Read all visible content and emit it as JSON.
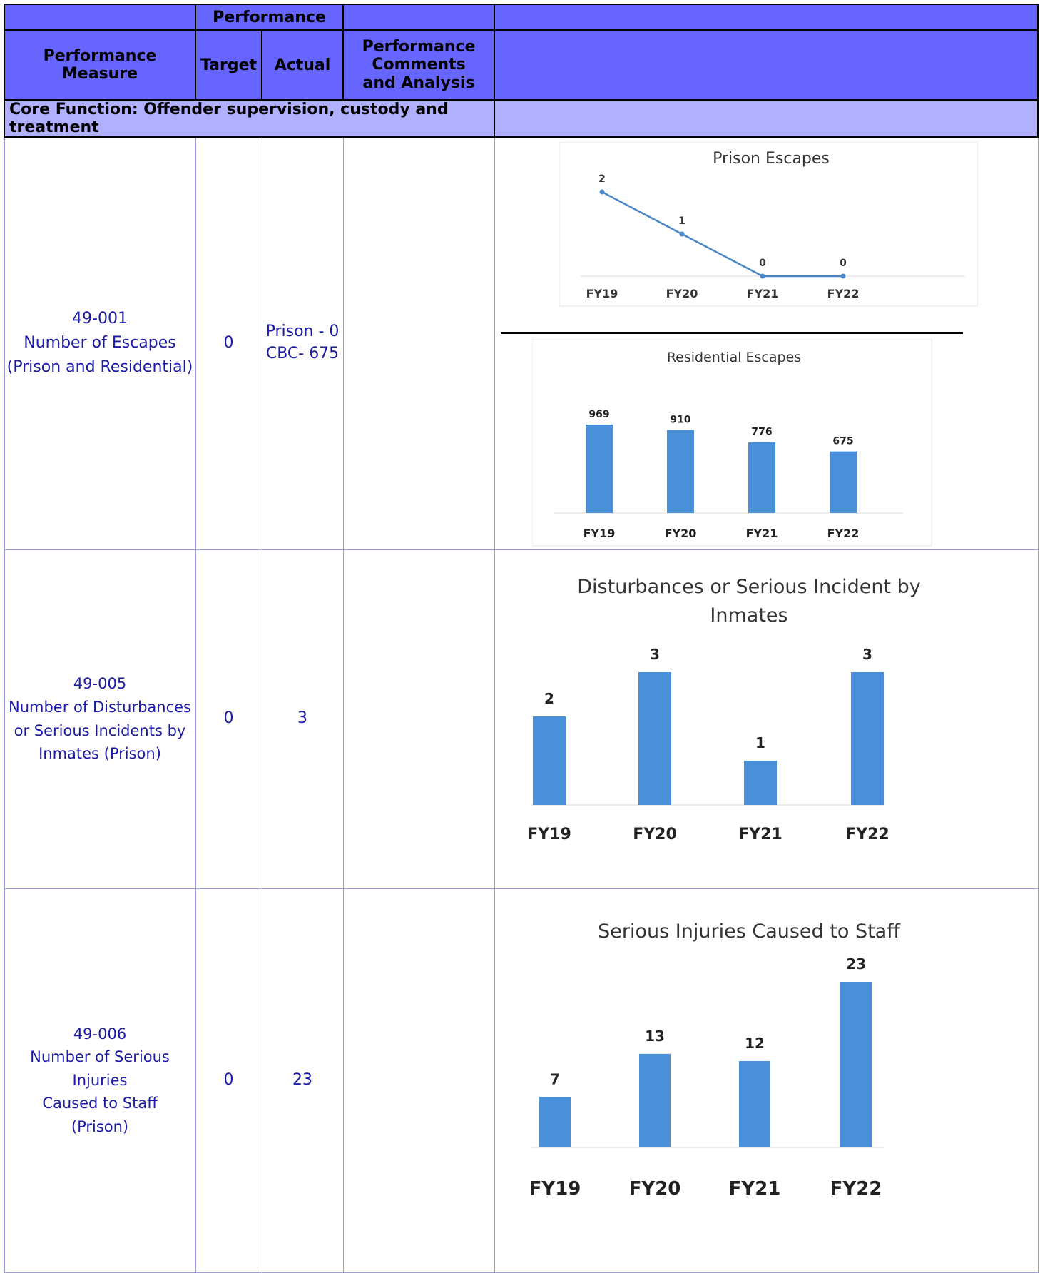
{
  "header": {
    "performance": "Performance",
    "measure": "Performance Measure",
    "target": "Target",
    "actual": "Actual",
    "comments": [
      "Performance",
      "Comments",
      "and Analysis"
    ]
  },
  "core_function": "Core Function: Offender supervision, custody and treatment",
  "rows": [
    {
      "measure": [
        "49-001",
        "Number of Escapes",
        "(Prison and Residential)"
      ],
      "target": "0",
      "actual": [
        "Prison - 0",
        "CBC- 675"
      ],
      "comments": ""
    },
    {
      "measure": [
        "49-005",
        "Number of Disturbances",
        "or Serious Incidents by",
        "Inmates (Prison)"
      ],
      "target": "0",
      "actual": [
        "3"
      ],
      "comments": ""
    },
    {
      "measure": [
        "49-006",
        "Number of Serious Injuries",
        "Caused to Staff",
        "(Prison)"
      ],
      "target": "0",
      "actual": [
        "23"
      ],
      "comments": ""
    }
  ],
  "colors": {
    "header": "#6666ff",
    "core": "#b0b0ff",
    "text": "#1a1aa6",
    "bar": "#4a90d9",
    "line": "#4a86c8"
  },
  "chart_data": [
    {
      "type": "line",
      "title": "Prison Escapes",
      "categories": [
        "FY19",
        "FY20",
        "FY21",
        "FY22"
      ],
      "values": [
        2,
        1,
        0,
        0
      ],
      "ylim": [
        0,
        2
      ]
    },
    {
      "type": "bar",
      "title": "Residential Escapes",
      "categories": [
        "FY19",
        "FY20",
        "FY21",
        "FY22"
      ],
      "values": [
        969,
        910,
        776,
        675
      ],
      "ylim": [
        0,
        969
      ]
    },
    {
      "type": "bar",
      "title": "Disturbances or Serious Incident by Inmates",
      "categories": [
        "FY19",
        "FY20",
        "FY21",
        "FY22"
      ],
      "values": [
        2,
        3,
        1,
        3
      ],
      "ylim": [
        0,
        3
      ]
    },
    {
      "type": "bar",
      "title": "Serious Injuries Caused to Staff",
      "categories": [
        "FY19",
        "FY20",
        "FY21",
        "FY22"
      ],
      "values": [
        7,
        13,
        12,
        23
      ],
      "ylim": [
        0,
        23
      ]
    }
  ]
}
